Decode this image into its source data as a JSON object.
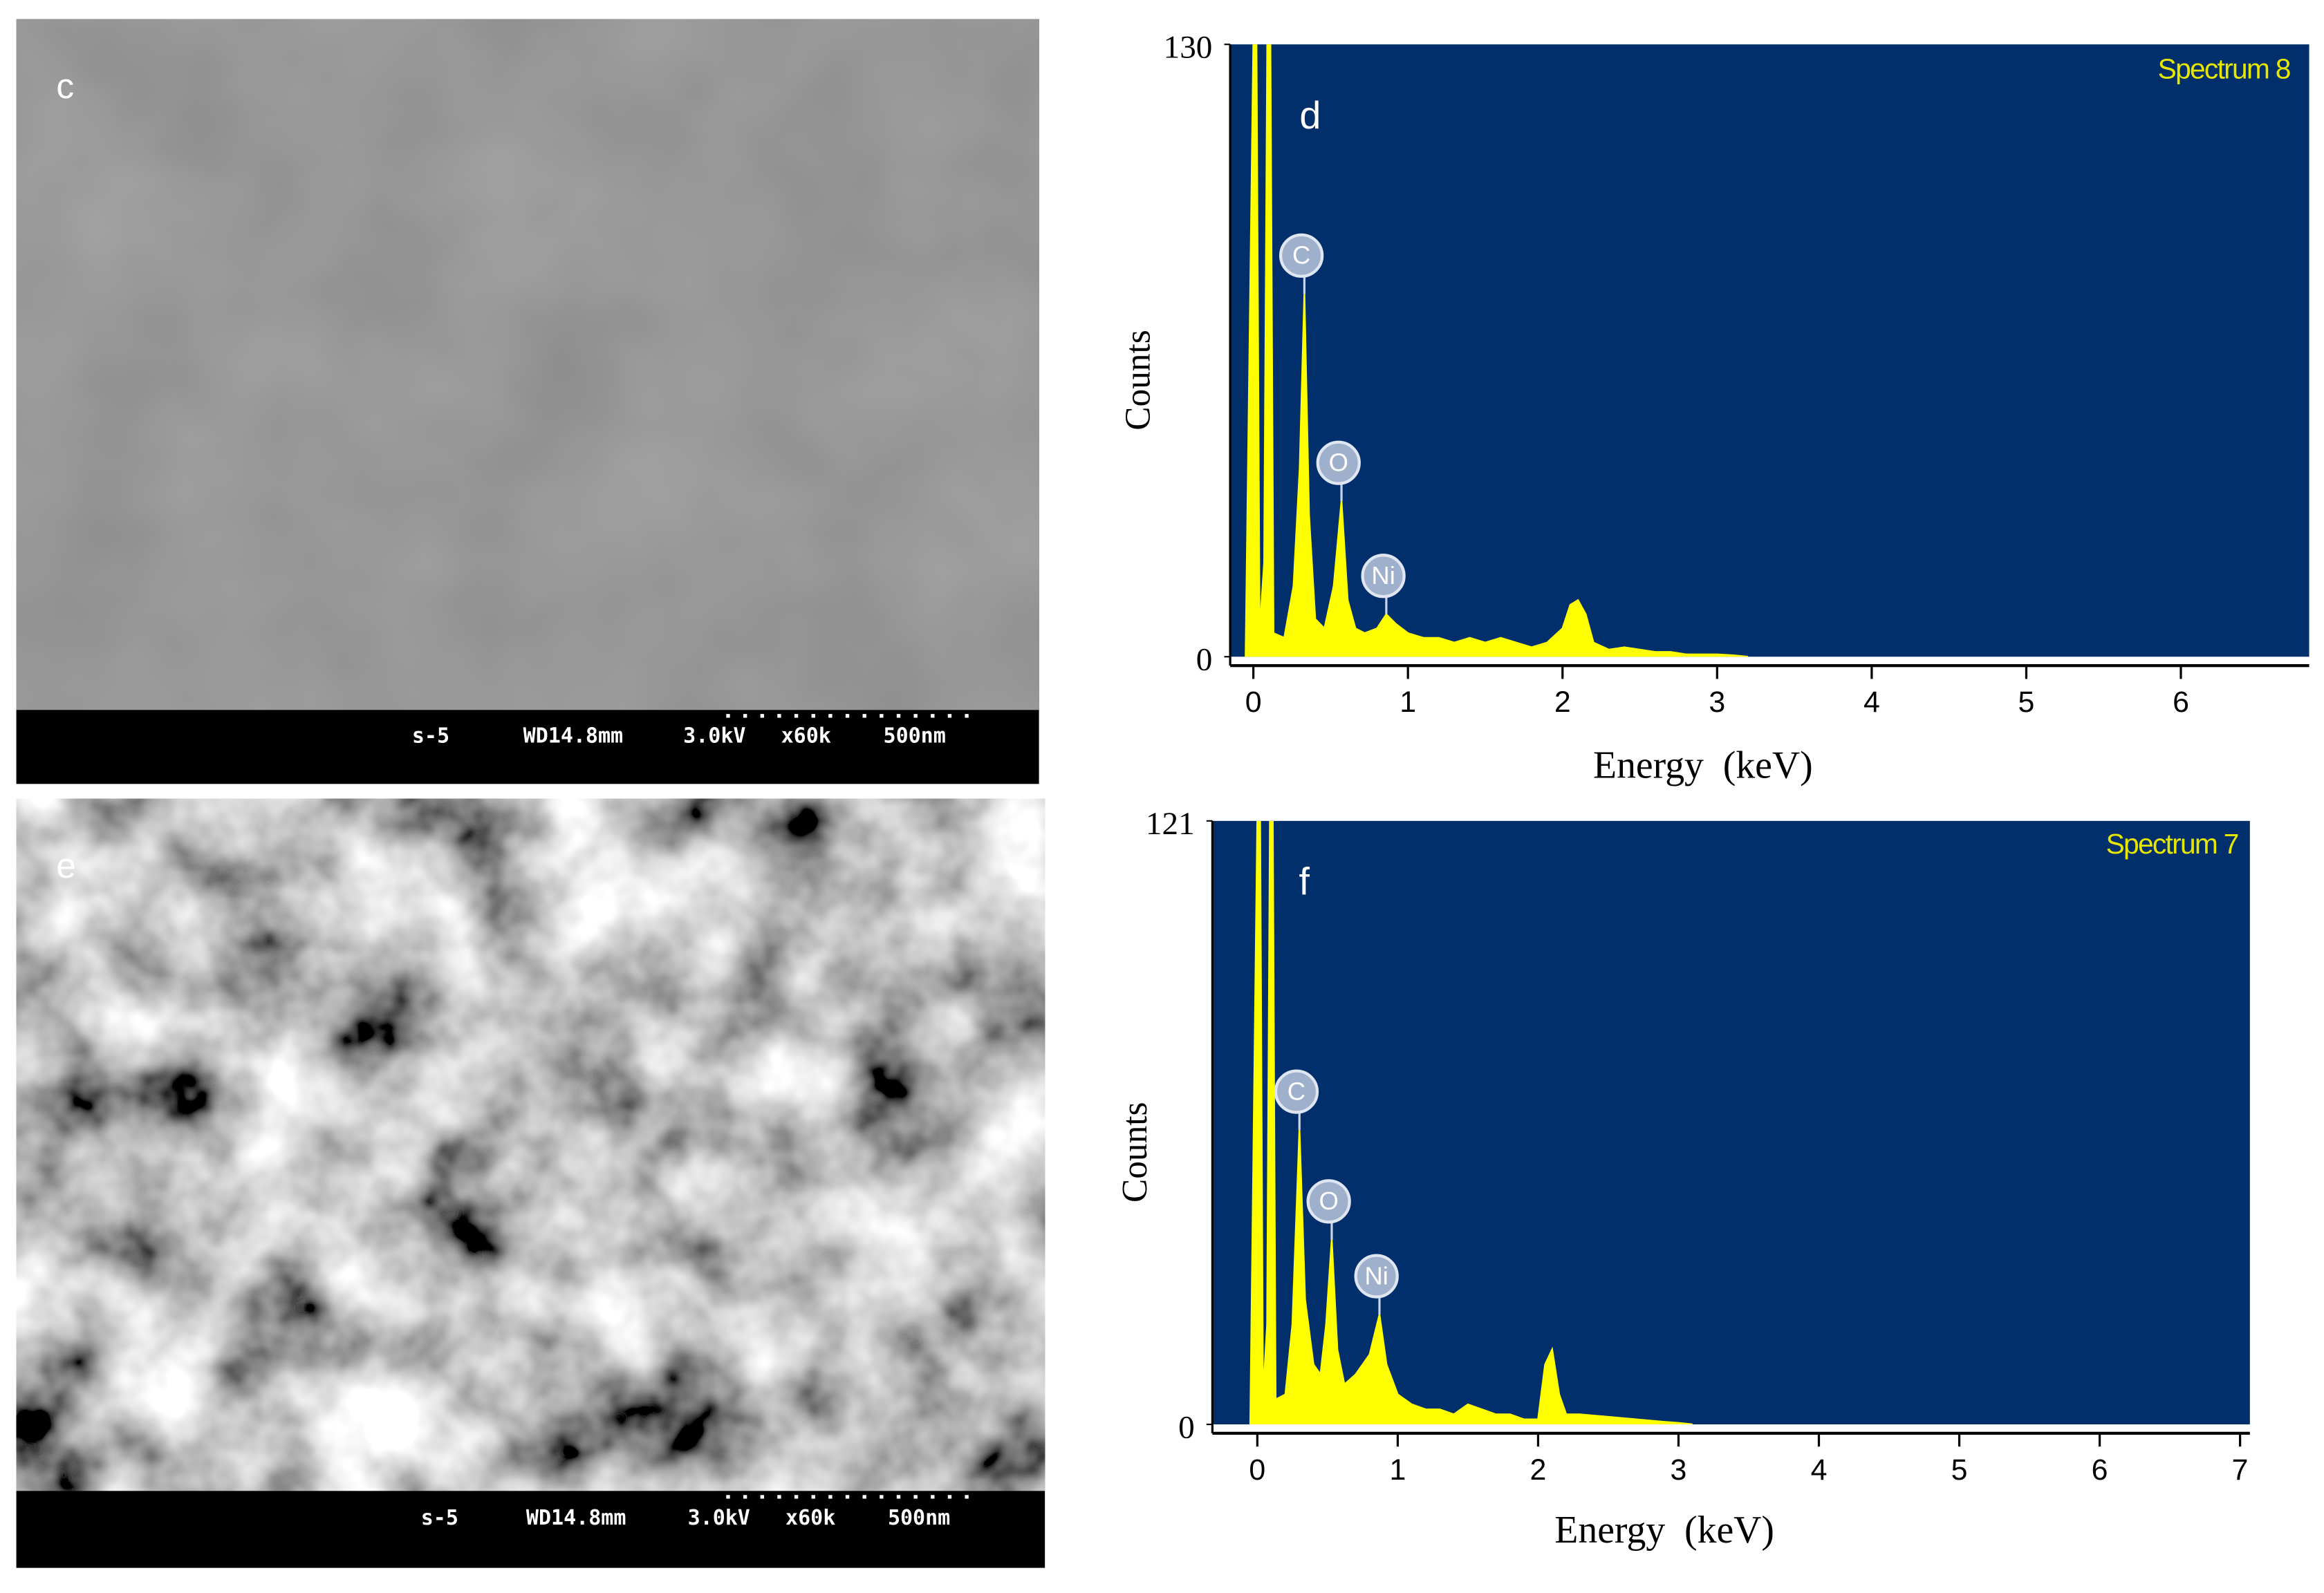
{
  "images": [
    {
      "label": "c",
      "info": [
        "s-5",
        "WD14.8mm",
        "3.0kV",
        "x60k",
        "500nm"
      ]
    },
    {
      "label": "e",
      "info": [
        "s-5",
        "WD14.8mm",
        "3.0kV",
        "x60k",
        "500nm"
      ]
    }
  ],
  "chart_data": [
    {
      "type": "area",
      "panel_label": "d",
      "legend": "Spectrum 8",
      "xlabel": "Energy  (keV)",
      "ylabel": "Counts",
      "color": "#ffff00",
      "background": "#002f6c",
      "xlim": [
        -0.15,
        6.83
      ],
      "ylim": [
        0,
        130
      ],
      "xticks": [
        0,
        1,
        2,
        3,
        4,
        5,
        6
      ],
      "yticks": [
        0,
        130
      ],
      "x": [
        -0.05,
        0,
        0.02,
        0.04,
        0.07,
        0.09,
        0.11,
        0.13,
        0.2,
        0.26,
        0.3,
        0.33,
        0.36,
        0.4,
        0.46,
        0.52,
        0.57,
        0.61,
        0.66,
        0.72,
        0.8,
        0.86,
        0.92,
        1.0,
        1.1,
        1.2,
        1.3,
        1.4,
        1.5,
        1.6,
        1.7,
        1.8,
        1.9,
        2.0,
        2.05,
        2.1,
        2.15,
        2.2,
        2.3,
        2.4,
        2.5,
        2.6,
        2.7,
        2.8,
        2.9,
        3.0,
        3.1,
        3.2
      ],
      "values": [
        0,
        130,
        130,
        5,
        20,
        130,
        130,
        5,
        4,
        15,
        40,
        77,
        30,
        8,
        6,
        15,
        33,
        12,
        6,
        5,
        6,
        9,
        7,
        5,
        4,
        4,
        3,
        4,
        3,
        4,
        3,
        2,
        3,
        6,
        11,
        12,
        9,
        3,
        1.5,
        2,
        1.5,
        1,
        1,
        0.5,
        0.5,
        0.5,
        0.3,
        0
      ],
      "peaks": [
        {
          "label": "C",
          "x": 0.33,
          "y": 77
        },
        {
          "label": "O",
          "x": 0.57,
          "y": 33
        },
        {
          "label": "Ni",
          "x": 0.86,
          "y": 9
        }
      ]
    },
    {
      "type": "area",
      "panel_label": "f",
      "legend": "Spectrum 7",
      "xlabel": "Energy  (keV)",
      "ylabel": "Counts",
      "color": "#ffff00",
      "background": "#002f6c",
      "xlim": [
        -0.32,
        7.07
      ],
      "ylim": [
        0,
        121
      ],
      "xticks": [
        0,
        1,
        2,
        3,
        4,
        5,
        6,
        7
      ],
      "yticks": [
        0,
        121
      ],
      "x": [
        -0.05,
        0,
        0.02,
        0.04,
        0.07,
        0.09,
        0.11,
        0.13,
        0.2,
        0.25,
        0.3,
        0.34,
        0.4,
        0.45,
        0.49,
        0.53,
        0.57,
        0.62,
        0.7,
        0.8,
        0.87,
        0.92,
        1.0,
        1.1,
        1.2,
        1.3,
        1.4,
        1.5,
        1.6,
        1.7,
        1.8,
        1.9,
        2.0,
        2.05,
        2.1,
        2.15,
        2.2,
        2.3,
        2.5,
        2.7,
        2.9,
        3.0,
        3.1
      ],
      "values": [
        0,
        121,
        121,
        5,
        20,
        121,
        121,
        5,
        6,
        20,
        59,
        25,
        12,
        10,
        20,
        37,
        15,
        8,
        10,
        14,
        22,
        12,
        6,
        4,
        3,
        3,
        2,
        4,
        3,
        2,
        2,
        1,
        1,
        12,
        15,
        6,
        2,
        2,
        1.5,
        1,
        0.5,
        0.3,
        0
      ],
      "peaks": [
        {
          "label": "C",
          "x": 0.3,
          "y": 59
        },
        {
          "label": "O",
          "x": 0.53,
          "y": 37
        },
        {
          "label": "Ni",
          "x": 0.87,
          "y": 22
        }
      ]
    }
  ]
}
